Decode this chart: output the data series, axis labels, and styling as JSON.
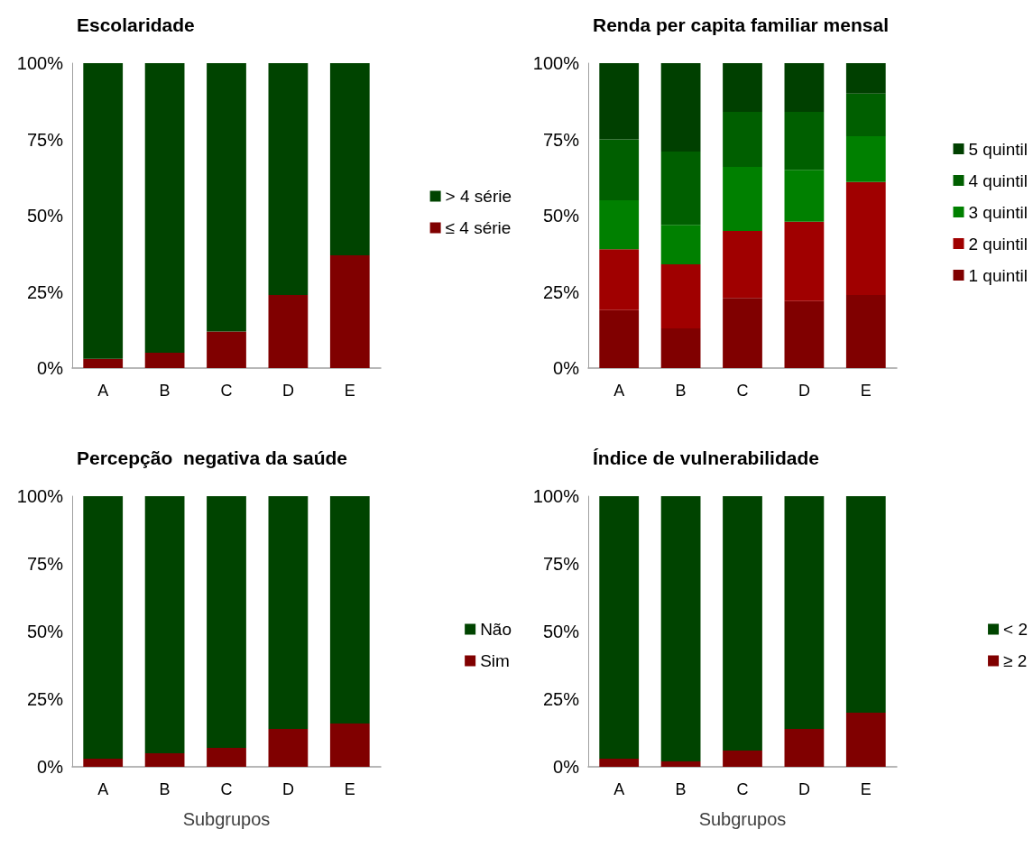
{
  "chart_data": [
    {
      "type": "bar",
      "title": "Escolaridade",
      "categories": [
        "A",
        "B",
        "C",
        "D",
        "E"
      ],
      "stacked": true,
      "legend": "right",
      "grid": false,
      "ylim": [
        0,
        100
      ],
      "yticks": [
        {
          "value": 0,
          "label": "0%"
        },
        {
          "value": 25,
          "label": "25%"
        },
        {
          "value": 50,
          "label": "50%"
        },
        {
          "value": 75,
          "label": "75%"
        },
        {
          "value": 100,
          "label": "100%"
        }
      ],
      "series": [
        {
          "name": "≤ 4 série",
          "color": "#800000",
          "values": [
            3,
            5,
            12,
            24,
            37
          ]
        },
        {
          "name": "> 4 série",
          "color": "#004400",
          "values": [
            97,
            95,
            88,
            76,
            63
          ]
        }
      ]
    },
    {
      "type": "bar",
      "title": "Renda per capita familiar mensal",
      "categories": [
        "A",
        "B",
        "C",
        "D",
        "E"
      ],
      "stacked": true,
      "legend": "right",
      "grid": false,
      "ylim": [
        0,
        100
      ],
      "yticks": [
        {
          "value": 0,
          "label": "0%"
        },
        {
          "value": 25,
          "label": "25%"
        },
        {
          "value": 50,
          "label": "50%"
        },
        {
          "value": 75,
          "label": "75%"
        },
        {
          "value": 100,
          "label": "100%"
        }
      ],
      "series": [
        {
          "name": "1 quintil",
          "color": "#800000",
          "values": [
            19,
            13,
            23,
            22,
            24
          ]
        },
        {
          "name": "2 quintil",
          "color": "#a00000",
          "values": [
            20,
            21,
            22,
            26,
            37
          ]
        },
        {
          "name": "3 quintil",
          "color": "#008000",
          "values": [
            16,
            13,
            21,
            17,
            15
          ]
        },
        {
          "name": "4 quintil",
          "color": "#005f00",
          "values": [
            20,
            24,
            18,
            19,
            14
          ]
        },
        {
          "name": "5 quintil",
          "color": "#004000",
          "values": [
            25,
            29,
            16,
            16,
            10
          ]
        }
      ]
    },
    {
      "type": "bar",
      "title": "Percepção  negativa da saúde",
      "xlabel": "Subgrupos",
      "categories": [
        "A",
        "B",
        "C",
        "D",
        "E"
      ],
      "stacked": true,
      "legend": "right",
      "grid": false,
      "ylim": [
        0,
        100
      ],
      "yticks": [
        {
          "value": 0,
          "label": "0%"
        },
        {
          "value": 25,
          "label": "25%"
        },
        {
          "value": 50,
          "label": "50%"
        },
        {
          "value": 75,
          "label": "75%"
        },
        {
          "value": 100,
          "label": "100%"
        }
      ],
      "series": [
        {
          "name": "Sim",
          "color": "#800000",
          "values": [
            3,
            5,
            7,
            14,
            16
          ]
        },
        {
          "name": "Não",
          "color": "#004400",
          "values": [
            97,
            95,
            93,
            86,
            84
          ]
        }
      ]
    },
    {
      "type": "bar",
      "title": "Índice de vulnerabilidade",
      "xlabel": "Subgrupos",
      "categories": [
        "A",
        "B",
        "C",
        "D",
        "E"
      ],
      "stacked": true,
      "legend": "right",
      "grid": false,
      "ylim": [
        0,
        100
      ],
      "yticks": [
        {
          "value": 0,
          "label": "0%"
        },
        {
          "value": 25,
          "label": "25%"
        },
        {
          "value": 50,
          "label": "50%"
        },
        {
          "value": 75,
          "label": "75%"
        },
        {
          "value": 100,
          "label": "100%"
        }
      ],
      "series": [
        {
          "name": "≥ 2",
          "color": "#800000",
          "values": [
            3,
            2,
            6,
            14,
            20
          ]
        },
        {
          "name": "< 2",
          "color": "#004400",
          "values": [
            97,
            98,
            94,
            86,
            80
          ]
        }
      ]
    }
  ]
}
